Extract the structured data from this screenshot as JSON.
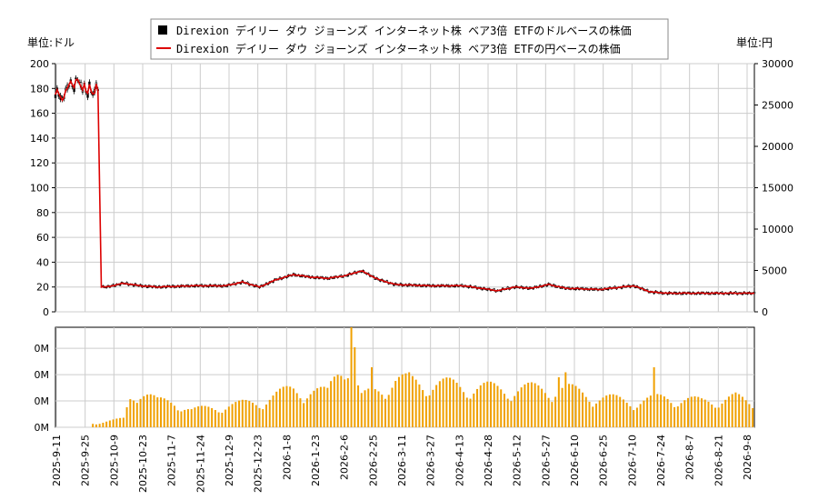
{
  "chart_data": {
    "type": "line",
    "legend": {
      "usd_label": "Direxion デイリー ダウ ジョーンズ インターネット株 ベア3倍 ETFのドルベースの株価",
      "jpy_label": "Direxion デイリー ダウ ジョーンズ インターネット株 ベア3倍 ETFの円ベースの株価",
      "placement": "top-center"
    },
    "left_unit": "単位:ドル",
    "right_unit": "単位:円",
    "y_left": {
      "min": 0,
      "max": 200,
      "ticks": [
        "0",
        "20",
        "40",
        "60",
        "80",
        "100",
        "120",
        "140",
        "160",
        "180",
        "200"
      ]
    },
    "y_right": {
      "min": 0,
      "max": 30000,
      "ticks": [
        "0",
        "5000",
        "10000",
        "15000",
        "20000",
        "25000",
        "30000"
      ]
    },
    "volume_axis": {
      "ticks": [
        "0M",
        "0M",
        "0M",
        "0M"
      ]
    },
    "x_labels": [
      "2025-9-11",
      "2025-9-25",
      "2025-10-9",
      "2025-10-23",
      "2025-11-7",
      "2025-11-24",
      "2025-12-9",
      "2025-12-23",
      "2026-1-8",
      "2026-1-23",
      "2026-2-6",
      "2026-2-25",
      "2026-3-11",
      "2026-3-27",
      "2026-4-13",
      "2026-4-28",
      "2026-5-12",
      "2026-5-27",
      "2026-6-10",
      "2026-6-25",
      "2026-7-10",
      "2026-7-24",
      "2026-8-7",
      "2026-8-21",
      "2026-9-8"
    ],
    "price_anchors_usd": [
      [
        0,
        175
      ],
      [
        1,
        178
      ],
      [
        2,
        176
      ],
      [
        3,
        172
      ],
      [
        4,
        170
      ],
      [
        5,
        174
      ],
      [
        6,
        178
      ],
      [
        7,
        181
      ],
      [
        8,
        184
      ],
      [
        9,
        185
      ],
      [
        10,
        183
      ],
      [
        11,
        180
      ],
      [
        12,
        186
      ],
      [
        13,
        188
      ],
      [
        14,
        184
      ],
      [
        15,
        182
      ],
      [
        16,
        180
      ],
      [
        17,
        183
      ],
      [
        18,
        178
      ],
      [
        19,
        176
      ],
      [
        20,
        182
      ],
      [
        21,
        178
      ],
      [
        22,
        175
      ],
      [
        23,
        176
      ],
      [
        24,
        185
      ],
      [
        25,
        178
      ],
      [
        26,
        100
      ],
      [
        27,
        20
      ],
      [
        30,
        20
      ],
      [
        40,
        23
      ],
      [
        50,
        21
      ],
      [
        60,
        20
      ],
      [
        80,
        21
      ],
      [
        100,
        21
      ],
      [
        110,
        24
      ],
      [
        120,
        20
      ],
      [
        130,
        26
      ],
      [
        140,
        30
      ],
      [
        150,
        28
      ],
      [
        160,
        27
      ],
      [
        170,
        29
      ],
      [
        180,
        33
      ],
      [
        190,
        26
      ],
      [
        200,
        22
      ],
      [
        220,
        21
      ],
      [
        240,
        21
      ],
      [
        260,
        17
      ],
      [
        270,
        20
      ],
      [
        280,
        19
      ],
      [
        290,
        22
      ],
      [
        300,
        19
      ],
      [
        320,
        18
      ],
      [
        340,
        21
      ],
      [
        350,
        16
      ],
      [
        360,
        15
      ],
      [
        380,
        15
      ],
      [
        400,
        15
      ],
      [
        411,
        15
      ]
    ],
    "jpy_per_usd": 150,
    "volume_anchors": [
      [
        0,
        0
      ],
      [
        20,
        0
      ],
      [
        21,
        0.05
      ],
      [
        25,
        0.05
      ],
      [
        40,
        0.1
      ],
      [
        44,
        0.35
      ],
      [
        50,
        0.45
      ],
      [
        60,
        0.3
      ],
      [
        70,
        0.3
      ],
      [
        80,
        0.2
      ],
      [
        100,
        0.25
      ],
      [
        120,
        0.3
      ],
      [
        140,
        0.45
      ],
      [
        160,
        0.4
      ],
      [
        170,
        0.85
      ],
      [
        180,
        0.35
      ],
      [
        190,
        0.45
      ],
      [
        200,
        0.55
      ],
      [
        230,
        0.5
      ],
      [
        260,
        0.45
      ],
      [
        280,
        0.45
      ],
      [
        300,
        0.45
      ],
      [
        320,
        0.35
      ],
      [
        340,
        0.3
      ],
      [
        360,
        0.35
      ],
      [
        380,
        0.3
      ],
      [
        400,
        0.35
      ],
      [
        411,
        0.25
      ]
    ],
    "volume_spikes": [
      [
        174,
        1.0
      ],
      [
        176,
        0.8
      ],
      [
        215,
        0.7
      ],
      [
        208,
        0.55
      ],
      [
        186,
        0.6
      ],
      [
        193,
        0.5
      ],
      [
        300,
        0.55
      ],
      [
        296,
        0.5
      ],
      [
        352,
        0.6
      ]
    ],
    "colors": {
      "usd": "#000000",
      "jpy": "#dd0000",
      "volume": "#f0a000",
      "grid": "#cccccc"
    },
    "grid": true
  }
}
